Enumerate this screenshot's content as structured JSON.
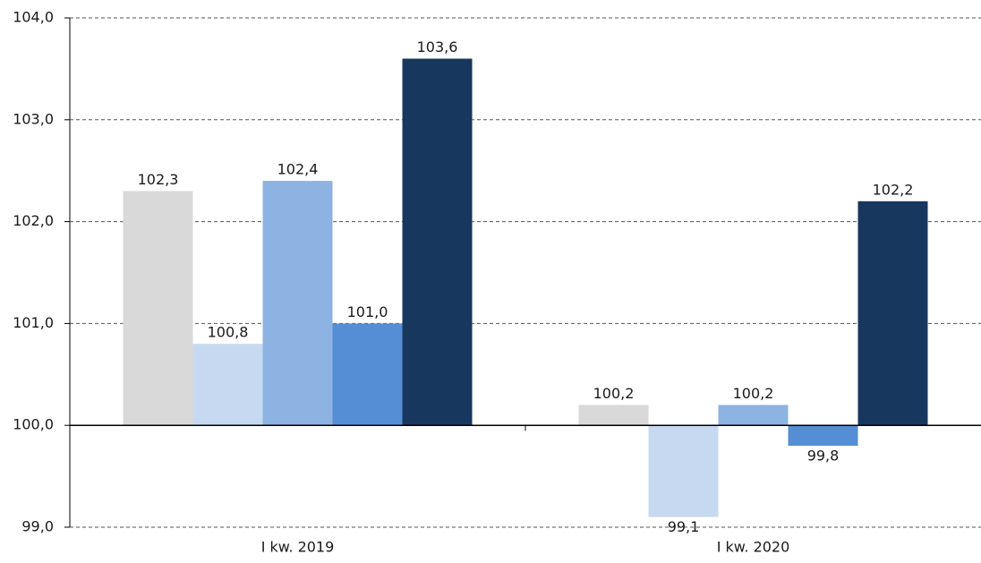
{
  "chart_data": {
    "type": "bar",
    "categories": [
      "I kw. 2019",
      "I kw. 2020"
    ],
    "series": [
      {
        "color": "#d9d9d9",
        "values": [
          102.3,
          100.2
        ],
        "value_labels": [
          "102,3",
          "100,2"
        ]
      },
      {
        "color": "#c6d9f0",
        "values": [
          100.8,
          99.1
        ],
        "value_labels": [
          "100,8",
          "99,1"
        ]
      },
      {
        "color": "#8db3e2",
        "values": [
          102.4,
          100.2
        ],
        "value_labels": [
          "102,4",
          "100,2"
        ]
      },
      {
        "color": "#558ed5",
        "values": [
          101.0,
          99.8
        ],
        "value_labels": [
          "101,0",
          "99,8"
        ]
      },
      {
        "color": "#17375e",
        "values": [
          103.6,
          102.2
        ],
        "value_labels": [
          "103,6",
          "102,2"
        ]
      }
    ],
    "ylim": [
      99,
      104
    ],
    "yticks": [
      {
        "value": 99,
        "label": "99,0"
      },
      {
        "value": 100,
        "label": "100,0"
      },
      {
        "value": 101,
        "label": "101,0"
      },
      {
        "value": 102,
        "label": "102,0"
      },
      {
        "value": 103,
        "label": "103,0"
      },
      {
        "value": 104,
        "label": "104,0"
      }
    ],
    "bar_base": 100,
    "grid": true
  }
}
